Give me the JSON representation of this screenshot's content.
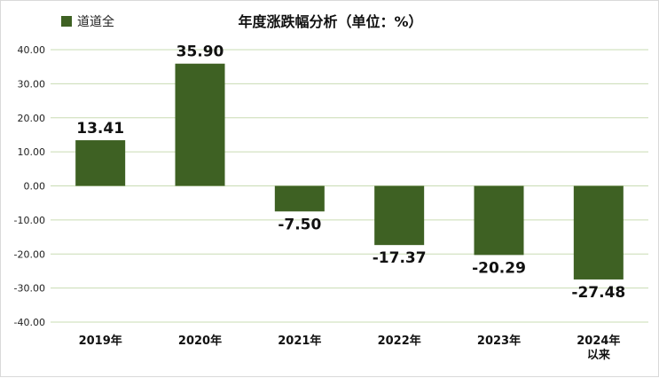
{
  "chart_data": {
    "type": "bar",
    "title": "年度涨跌幅分析（单位：%）",
    "categories": [
      "2019年",
      "2020年",
      "2021年",
      "2022年",
      "2023年",
      "2024年\n以来"
    ],
    "series": [
      {
        "name": "道道全",
        "values": [
          13.41,
          35.9,
          -7.5,
          -17.37,
          -20.29,
          -27.48
        ],
        "data_labels": [
          "13.41",
          "35.90",
          "-7.50",
          "-17.37",
          "-20.29",
          "-27.48"
        ],
        "color": "#3e6123"
      }
    ],
    "y_ticks": [
      "40.00",
      "30.00",
      "20.00",
      "10.00",
      "0.00",
      "-10.00",
      "-20.00",
      "-30.00",
      "-40.00"
    ],
    "ylim": [
      -40,
      40
    ],
    "xlabel": "",
    "ylabel": "",
    "grid": true,
    "grid_color": "#c9dcb3",
    "legend_position": "top-left"
  }
}
